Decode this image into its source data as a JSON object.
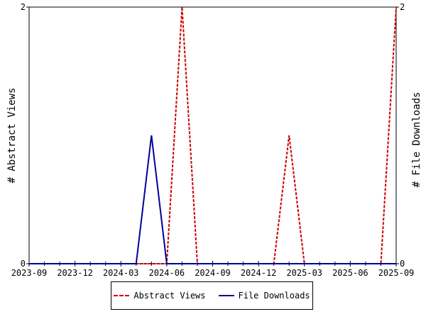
{
  "chart_data": {
    "type": "line",
    "x": [
      "2023-09",
      "2023-10",
      "2023-11",
      "2023-12",
      "2024-01",
      "2024-02",
      "2024-03",
      "2024-04",
      "2024-05",
      "2024-06",
      "2024-07",
      "2024-08",
      "2024-09",
      "2024-10",
      "2024-11",
      "2024-12",
      "2025-01",
      "2025-02",
      "2025-03",
      "2025-04",
      "2025-05",
      "2025-06",
      "2025-07",
      "2025-08",
      "2025-09"
    ],
    "xticks": [
      "2023-09",
      "2023-12",
      "2024-03",
      "2024-06",
      "2024-09",
      "2024-12",
      "2025-03",
      "2025-06",
      "2025-09"
    ],
    "series": [
      {
        "name": "Abstract Views",
        "axis": "left",
        "color": "#cc0000",
        "style": "dashed",
        "values": [
          0,
          0,
          0,
          0,
          0,
          0,
          0,
          0,
          0,
          0,
          2,
          0,
          0,
          0,
          0,
          0,
          0,
          1,
          0,
          0,
          0,
          0,
          0,
          0,
          2
        ]
      },
      {
        "name": "File Downloads",
        "axis": "right",
        "color": "#000099",
        "style": "solid",
        "values": [
          0,
          0,
          0,
          0,
          0,
          0,
          0,
          0,
          1,
          0,
          0,
          0,
          0,
          0,
          0,
          0,
          0,
          0,
          0,
          0,
          0,
          0,
          0,
          0,
          0
        ]
      }
    ],
    "ylabel": "# Abstract Views",
    "ylabel_right": "# File Downloads",
    "ylim": [
      0,
      2
    ],
    "yticks": [
      "0",
      "2"
    ],
    "grid": false,
    "legend": "bottom"
  }
}
